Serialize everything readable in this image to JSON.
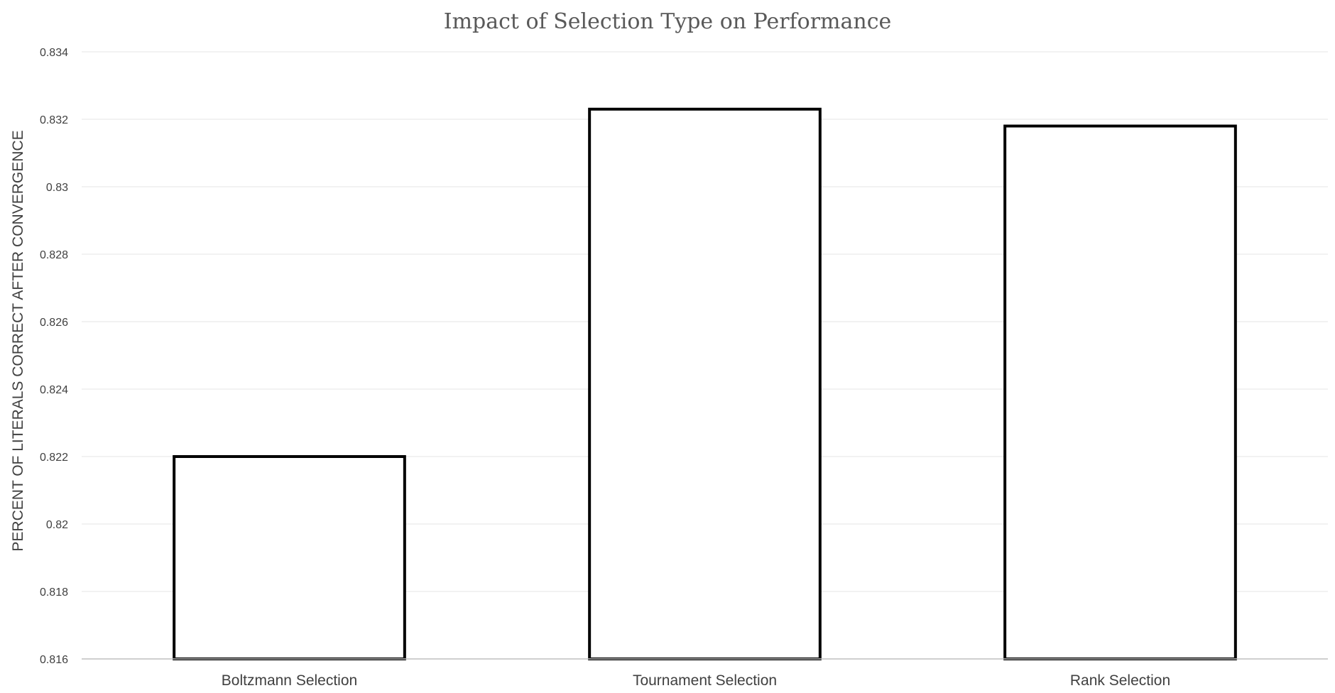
{
  "chart_data": {
    "type": "bar",
    "title": "Impact of Selection Type on Performance",
    "xlabel": "",
    "ylabel": "PERCENT OF LITERALS CORRECT AFTER CONVERGENCE",
    "categories": [
      "Boltzmann Selection",
      "Tournament Selection",
      "Rank Selection"
    ],
    "values": [
      0.822,
      0.8323,
      0.8318
    ],
    "ylim": [
      0.816,
      0.834
    ],
    "yticks": [
      "0.816",
      "0.818",
      "0.82",
      "0.822",
      "0.824",
      "0.826",
      "0.828",
      "0.83",
      "0.832",
      "0.834"
    ],
    "grid": true,
    "legend": "none",
    "colors": {
      "bar_fill": "#ffffff",
      "bar_stroke": "#000000",
      "gridline": "#e6e6e6",
      "text": "#404040",
      "title": "#595959"
    }
  }
}
